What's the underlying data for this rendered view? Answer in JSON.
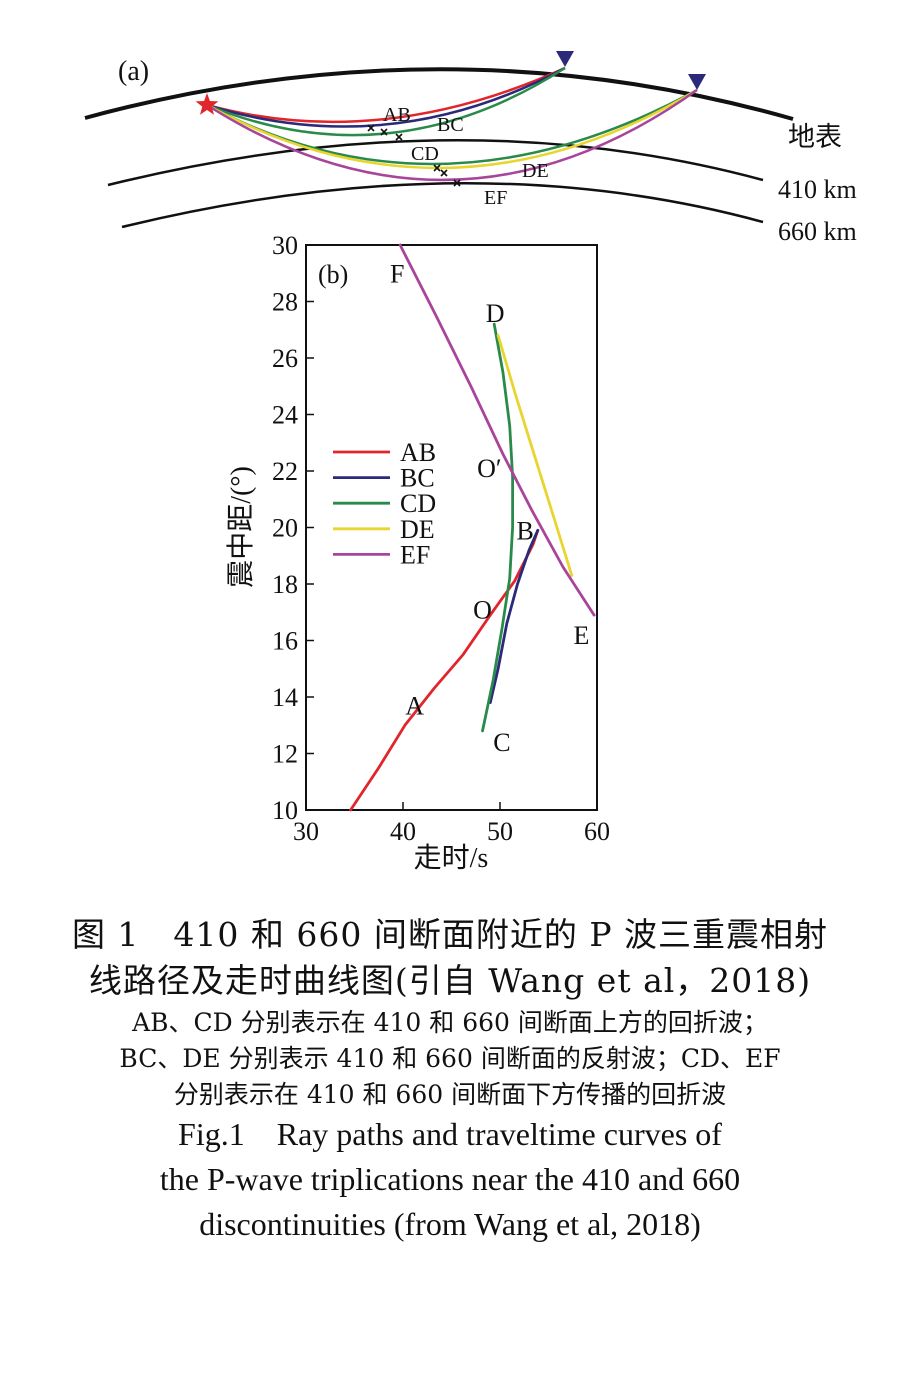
{
  "colors": {
    "AB": "#e0252b",
    "BC": "#2b2a7a",
    "CD": "#2a8a4a",
    "DE": "#e8d530",
    "EF": "#a8459a",
    "source_star": "#e0252b",
    "station": "#2b2a7a"
  },
  "panel_a": {
    "label": "(a)",
    "surface_label": "地表",
    "d410_label": "410 km",
    "d660_label": "660 km",
    "ray_labels": [
      "AB",
      "BC",
      "CD",
      "DE",
      "EF"
    ],
    "source_icon": "star-icon",
    "station_icon": "inverted-triangle-icon"
  },
  "chart_data": {
    "type": "line",
    "panel_label": "(b)",
    "xlabel": "走时/s",
    "ylabel": "震中距/(°)",
    "xlim": [
      30,
      60
    ],
    "ylim": [
      10,
      30
    ],
    "xticks": [
      30,
      40,
      50,
      60
    ],
    "yticks": [
      10,
      12,
      14,
      16,
      18,
      20,
      22,
      24,
      26,
      28,
      30
    ],
    "grid": false,
    "legend_position": "left-middle",
    "series": [
      {
        "name": "AB",
        "points": [
          [
            34.6,
            10
          ],
          [
            37.5,
            11.5
          ],
          [
            40.2,
            13
          ],
          [
            43.2,
            14.3
          ],
          [
            46.2,
            15.5
          ],
          [
            49.2,
            17
          ],
          [
            51.5,
            18.1
          ],
          [
            53.4,
            19.4
          ],
          [
            53.9,
            19.9
          ]
        ]
      },
      {
        "name": "BC",
        "points": [
          [
            53.9,
            19.9
          ],
          [
            53.0,
            19.2
          ],
          [
            51.8,
            18.0
          ],
          [
            50.7,
            16.6
          ],
          [
            49.8,
            15.0
          ],
          [
            49.0,
            13.8
          ]
        ]
      },
      {
        "name": "CD",
        "points": [
          [
            48.2,
            12.8
          ],
          [
            49.3,
            14.6
          ],
          [
            50.2,
            16.4
          ],
          [
            51.0,
            18.2
          ],
          [
            51.3,
            20.0
          ],
          [
            51.3,
            21.8
          ],
          [
            51.0,
            23.6
          ],
          [
            50.3,
            25.5
          ],
          [
            49.4,
            27.2
          ]
        ]
      },
      {
        "name": "DE",
        "points": [
          [
            49.8,
            26.8
          ],
          [
            51.6,
            24.7
          ],
          [
            53.6,
            22.5
          ],
          [
            55.6,
            20.3
          ],
          [
            57.4,
            18.3
          ]
        ]
      },
      {
        "name": "EF",
        "points": [
          [
            39.7,
            30
          ],
          [
            43.4,
            27.5
          ],
          [
            47.0,
            25.0
          ],
          [
            50.3,
            22.6
          ],
          [
            53.3,
            20.6
          ],
          [
            56.5,
            18.6
          ],
          [
            59.7,
            16.9
          ]
        ]
      }
    ],
    "annotations": [
      {
        "text": "F",
        "x": 39.4,
        "y": 29.0
      },
      {
        "text": "D",
        "x": 49.5,
        "y": 27.6
      },
      {
        "text": "O′",
        "x": 48.9,
        "y": 22.1
      },
      {
        "text": "B",
        "x": 52.6,
        "y": 19.9
      },
      {
        "text": "O",
        "x": 48.2,
        "y": 17.1
      },
      {
        "text": "E",
        "x": 58.4,
        "y": 16.2
      },
      {
        "text": "A",
        "x": 41.2,
        "y": 13.7
      },
      {
        "text": "C",
        "x": 50.2,
        "y": 12.4
      }
    ]
  },
  "caption": {
    "zh_title_line1": "图 1　410 和 660 间断面附近的 P 波三重震相射",
    "zh_title_line2": "线路径及走时曲线图(引自 Wang et al，2018)",
    "zh_note_line1": "AB、CD 分别表示在 410 和 660 间断面上方的回折波；",
    "zh_note_line2": "BC、DE 分别表示 410 和 660 间断面的反射波；CD、EF",
    "zh_note_line3": "分别表示在 410 和 660 间断面下方传播的回折波",
    "en_line1": "Fig.1　Ray paths and traveltime curves of",
    "en_line2": "the P-wave triplications near the 410 and 660",
    "en_line3": "discontinuities (from Wang et al, 2018)"
  }
}
